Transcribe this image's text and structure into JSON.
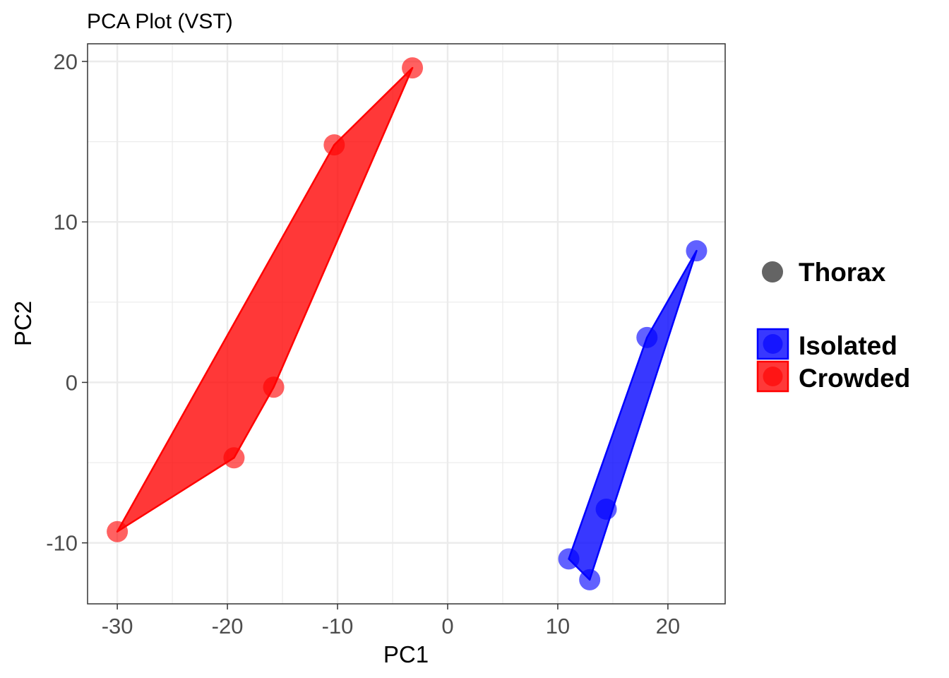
{
  "chart_data": {
    "type": "scatter",
    "title": "PCA Plot (VST)",
    "xlabel": "PC1",
    "ylabel": "PC2",
    "xlim": [
      -32.7,
      25.2
    ],
    "ylim": [
      -13.8,
      21.1
    ],
    "x_ticks": [
      -30,
      -20,
      -10,
      0,
      10,
      20
    ],
    "x_tick_labels": [
      "-30",
      "-20",
      "-10",
      "0",
      "10",
      "20"
    ],
    "y_ticks": [
      -10,
      0,
      10,
      20
    ],
    "y_tick_labels": [
      "-10",
      "0",
      "10",
      "20"
    ],
    "grid": true,
    "legend_position": "right",
    "shape_legend": {
      "label": "Thorax",
      "color": "#646464"
    },
    "series": [
      {
        "name": "Isolated",
        "color": "#0000ff",
        "hull": true,
        "points": [
          {
            "x": 11.0,
            "y": -11.0
          },
          {
            "x": 12.9,
            "y": -12.3
          },
          {
            "x": 14.4,
            "y": -7.9
          },
          {
            "x": 18.1,
            "y": 2.8
          },
          {
            "x": 22.6,
            "y": 8.2
          }
        ]
      },
      {
        "name": "Crowded",
        "color": "#ff0000",
        "hull": true,
        "points": [
          {
            "x": -30.0,
            "y": -9.3
          },
          {
            "x": -19.4,
            "y": -4.7
          },
          {
            "x": -15.8,
            "y": -0.3
          },
          {
            "x": -10.3,
            "y": 14.8
          },
          {
            "x": -3.2,
            "y": 19.6
          }
        ]
      }
    ]
  }
}
